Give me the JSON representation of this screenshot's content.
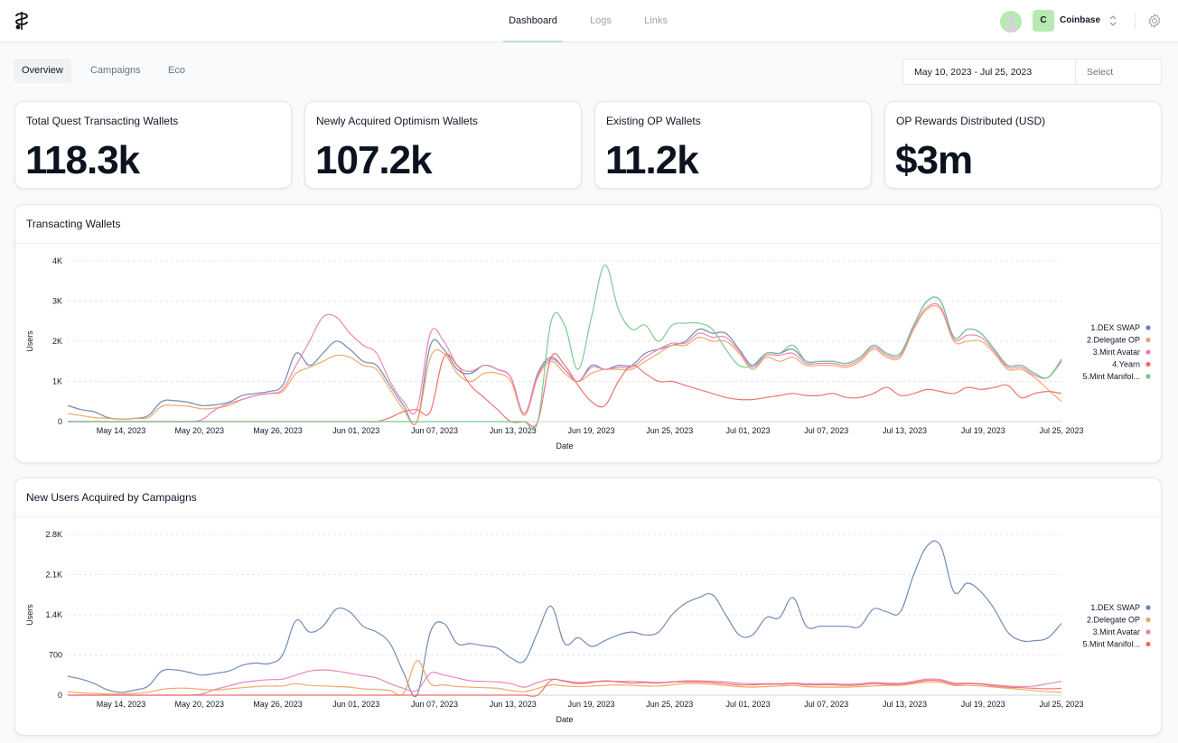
{
  "header": {
    "tabs": [
      {
        "label": "Dashboard",
        "active": true
      },
      {
        "label": "Logs",
        "active": false
      },
      {
        "label": "Links",
        "active": false
      }
    ],
    "org_initial": "C",
    "org_name": "Coinbase",
    "icons": [
      "logo-icon",
      "avatar-icon",
      "chevron-updown-icon",
      "gear-icon"
    ]
  },
  "subtabs": [
    {
      "label": "Overview",
      "active": true
    },
    {
      "label": "Campaigns",
      "active": false
    },
    {
      "label": "Eco",
      "active": false
    }
  ],
  "date_filter": {
    "range": "May 10, 2023 - Jul 25, 2023",
    "select_label": "Select"
  },
  "metrics": [
    {
      "title": "Total Quest Transacting Wallets",
      "value": "118.3k"
    },
    {
      "title": "Newly Acquired Optimism Wallets",
      "value": "107.2k"
    },
    {
      "title": "Existing OP Wallets",
      "value": "11.2k"
    },
    {
      "title": "OP Rewards Distributed (USD)",
      "value": "$3m"
    }
  ],
  "colors": {
    "accent": "#b7e4c7",
    "blue": "#6b84b0",
    "orange": "#f0a460",
    "pink": "#ec7fb4",
    "red": "#ee6b6b",
    "green": "#72c98e"
  },
  "chart_data": [
    {
      "type": "line",
      "title": "Transacting Wallets",
      "xlabel": "Date",
      "ylabel": "Users",
      "ylim": [
        0,
        4000
      ],
      "yticks": [
        0,
        1000,
        2000,
        3000,
        4000
      ],
      "ytick_labels": [
        "0",
        "1K",
        "2K",
        "3K",
        "4K"
      ],
      "xtick_labels": [
        "May 14, 2023",
        "May 20, 2023",
        "May 26, 2023",
        "Jun 01, 2023",
        "Jun 07, 2023",
        "Jun 13, 2023",
        "Jun 19, 2023",
        "Jun 25, 2023",
        "Jul 01, 2023",
        "Jul 07, 2023",
        "Jul 13, 2023",
        "Jul 19, 2023",
        "Jul 25, 2023"
      ],
      "legend_position": "right",
      "grid": true,
      "series": [
        {
          "name": "1.DEX SWAP",
          "color": "#6b84b0",
          "values": [
            400,
            300,
            240,
            100,
            60,
            80,
            150,
            500,
            520,
            480,
            400,
            420,
            480,
            650,
            700,
            750,
            900,
            1700,
            1400,
            1700,
            2000,
            1800,
            1500,
            1400,
            900,
            400,
            0,
            1900,
            1800,
            1300,
            1200,
            1400,
            1300,
            1100,
            200,
            1200,
            1600,
            1300,
            1000,
            1400,
            1300,
            1400,
            1400,
            1700,
            1800,
            1900,
            2000,
            2300,
            2200,
            2200,
            1800,
            1400,
            1700,
            1700,
            1800,
            1500,
            1500,
            1500,
            1450,
            1600,
            1900,
            1700,
            1700,
            2400,
            3000,
            3000,
            2100,
            2300,
            2200,
            1800,
            1400,
            1400,
            1200,
            1100,
            1550
          ]
        },
        {
          "name": "2.Delegate OP",
          "color": "#f0a460",
          "values": [
            200,
            150,
            100,
            80,
            60,
            80,
            100,
            380,
            400,
            380,
            320,
            340,
            400,
            550,
            650,
            700,
            750,
            1200,
            1350,
            1500,
            1650,
            1600,
            1400,
            1300,
            800,
            300,
            0,
            1600,
            1700,
            1200,
            1000,
            1200,
            1200,
            1000,
            150,
            1100,
            1500,
            1200,
            1000,
            1200,
            1300,
            1300,
            1300,
            1500,
            1700,
            1900,
            1900,
            2100,
            2000,
            2000,
            1700,
            1300,
            1600,
            1500,
            1600,
            1400,
            1400,
            1400,
            1350,
            1500,
            1800,
            1600,
            1600,
            2300,
            2800,
            2800,
            2000,
            2000,
            2000,
            1700,
            1300,
            1300,
            1100,
            800,
            500
          ]
        },
        {
          "name": "3.Mint Avatar",
          "color": "#ec7fb4",
          "values": [
            0,
            0,
            0,
            0,
            0,
            0,
            0,
            0,
            0,
            0,
            50,
            300,
            450,
            550,
            650,
            700,
            800,
            1400,
            2000,
            2600,
            2600,
            2200,
            1900,
            1700,
            1000,
            500,
            300,
            2200,
            2000,
            1400,
            1250,
            1400,
            1300,
            1100,
            200,
            1150,
            1550,
            1300,
            1000,
            1350,
            1300,
            1350,
            1350,
            1600,
            1800,
            1950,
            1950,
            2200,
            2100,
            2100,
            1750,
            1350,
            1650,
            1650,
            1700,
            1450,
            1450,
            1450,
            1400,
            1550,
            1850,
            1650,
            1650,
            2350,
            2850,
            2850,
            2050,
            2150,
            2100,
            1750,
            1350,
            1350,
            1150,
            1100,
            1500
          ]
        },
        {
          "name": "4.Yearn",
          "color": "#ee6b6b",
          "values": [
            0,
            0,
            0,
            0,
            0,
            0,
            0,
            0,
            0,
            0,
            0,
            0,
            0,
            0,
            0,
            0,
            0,
            0,
            0,
            0,
            0,
            0,
            0,
            0,
            100,
            250,
            300,
            250,
            1600,
            1400,
            900,
            600,
            300,
            0,
            0,
            0,
            1600,
            1400,
            900,
            500,
            400,
            1000,
            1400,
            1200,
            1000,
            1000,
            900,
            800,
            700,
            600,
            550,
            550,
            600,
            650,
            700,
            650,
            650,
            700,
            600,
            600,
            700,
            850,
            650,
            700,
            800,
            750,
            700,
            850,
            800,
            850,
            900,
            600,
            700,
            750,
            700
          ]
        },
        {
          "name": "5.Mint Manifol...",
          "color": "#72c98e",
          "values": [
            0,
            0,
            0,
            0,
            0,
            0,
            0,
            0,
            0,
            0,
            0,
            0,
            0,
            0,
            0,
            0,
            0,
            0,
            0,
            0,
            0,
            0,
            0,
            0,
            0,
            0,
            0,
            0,
            0,
            0,
            0,
            0,
            0,
            0,
            0,
            0,
            2500,
            2400,
            1300,
            2600,
            3900,
            2800,
            2300,
            2400,
            2000,
            2400,
            2450,
            2450,
            2300,
            1800,
            1400,
            1400,
            1700,
            1700,
            1900,
            1500,
            1500,
            1500,
            1450,
            1600,
            1900,
            1700,
            1700,
            2400,
            3000,
            3000,
            2100,
            2300,
            2200,
            1800,
            1400,
            1400,
            1200,
            1100,
            1550
          ]
        }
      ]
    },
    {
      "type": "line",
      "title": "New Users Acquired by Campaigns",
      "xlabel": "Date",
      "ylabel": "Users",
      "ylim": [
        0,
        2800
      ],
      "yticks": [
        0,
        700,
        1400,
        2100,
        2800
      ],
      "ytick_labels": [
        "0",
        "700",
        "1.4K",
        "2.1K",
        "2.8K"
      ],
      "xtick_labels": [
        "May 14, 2023",
        "May 20, 2023",
        "May 26, 2023",
        "Jun 01, 2023",
        "Jun 07, 2023",
        "Jun 13, 2023",
        "Jun 19, 2023",
        "Jun 25, 2023",
        "Jul 01, 2023",
        "Jul 07, 2023",
        "Jul 13, 2023",
        "Jul 19, 2023",
        "Jul 25, 2023"
      ],
      "legend_position": "right",
      "grid": true,
      "series": [
        {
          "name": "1.DEX SWAP",
          "color": "#6b84b0",
          "values": [
            330,
            280,
            200,
            90,
            50,
            90,
            160,
            420,
            440,
            400,
            350,
            380,
            420,
            520,
            560,
            550,
            700,
            1300,
            1100,
            1200,
            1500,
            1450,
            1200,
            1100,
            900,
            400,
            0,
            1100,
            1250,
            900,
            900,
            860,
            820,
            650,
            600,
            1100,
            1550,
            900,
            1000,
            850,
            950,
            1050,
            1100,
            1050,
            1100,
            1400,
            1600,
            1700,
            1750,
            1400,
            1050,
            1050,
            1350,
            1350,
            1700,
            1200,
            1200,
            1200,
            1200,
            1200,
            1500,
            1450,
            1450,
            2100,
            2600,
            2600,
            1800,
            1950,
            1800,
            1500,
            1100,
            950,
            950,
            1000,
            1250
          ]
        },
        {
          "name": "2.Delegate OP",
          "color": "#f0a460",
          "values": [
            60,
            40,
            30,
            20,
            20,
            30,
            50,
            100,
            120,
            120,
            100,
            90,
            110,
            130,
            150,
            160,
            160,
            200,
            170,
            160,
            150,
            140,
            110,
            100,
            80,
            30,
            600,
            200,
            180,
            150,
            140,
            130,
            120,
            80,
            60,
            120,
            180,
            160,
            150,
            160,
            170,
            180,
            170,
            160,
            160,
            180,
            200,
            200,
            190,
            170,
            150,
            140,
            150,
            160,
            170,
            150,
            140,
            140,
            140,
            150,
            160,
            170,
            170,
            200,
            230,
            220,
            170,
            170,
            160,
            140,
            120,
            100,
            80,
            60,
            50
          ]
        },
        {
          "name": "3.Mint Avatar",
          "color": "#ec7fb4",
          "values": [
            0,
            0,
            0,
            0,
            0,
            0,
            0,
            0,
            0,
            0,
            20,
            100,
            160,
            220,
            250,
            270,
            280,
            350,
            420,
            440,
            420,
            380,
            340,
            300,
            200,
            120,
            80,
            380,
            350,
            300,
            250,
            240,
            230,
            200,
            140,
            220,
            280,
            250,
            220,
            230,
            240,
            240,
            240,
            230,
            220,
            230,
            250,
            250,
            240,
            230,
            210,
            200,
            200,
            200,
            210,
            200,
            200,
            200,
            190,
            200,
            220,
            210,
            210,
            240,
            280,
            270,
            210,
            210,
            200,
            180,
            160,
            150,
            160,
            200,
            240
          ]
        },
        {
          "name": "5.Mint Manifol...",
          "color": "#ee6b6b",
          "values": [
            0,
            0,
            0,
            0,
            0,
            0,
            0,
            0,
            0,
            0,
            0,
            0,
            0,
            0,
            0,
            0,
            0,
            0,
            0,
            0,
            0,
            0,
            0,
            0,
            0,
            0,
            0,
            0,
            0,
            0,
            0,
            0,
            0,
            0,
            0,
            0,
            260,
            240,
            200,
            220,
            250,
            230,
            210,
            220,
            210,
            230,
            230,
            230,
            220,
            200,
            180,
            180,
            190,
            190,
            200,
            180,
            180,
            180,
            170,
            180,
            200,
            190,
            190,
            220,
            260,
            250,
            190,
            200,
            190,
            160,
            140,
            130,
            120,
            110,
            120
          ]
        }
      ]
    }
  ]
}
